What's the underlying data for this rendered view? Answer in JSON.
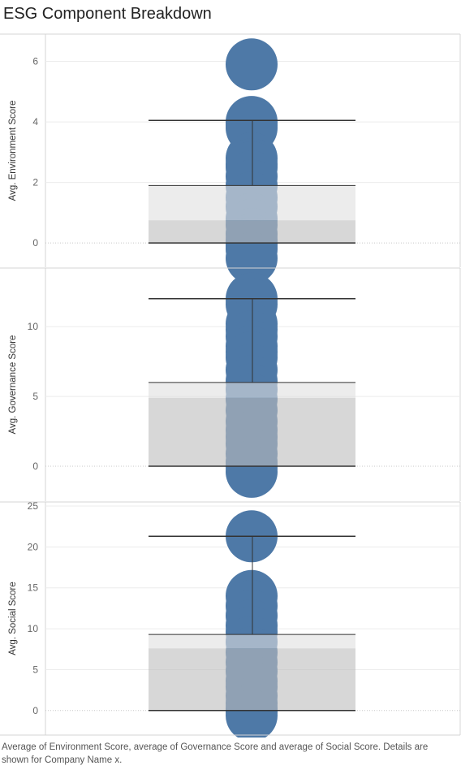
{
  "title": "ESG Component Breakdown",
  "caption": "Average of Environment Score, average of Governance Score and average of Social Score.  Details are shown for Company Name x.",
  "colors": {
    "dot": "#4e79a7",
    "box_upper": "#e0e0e0",
    "box_lower": "#bdbdbd",
    "whisker": "#333333",
    "grid": "#ececec",
    "zero_line": "#c8c8c8",
    "panel_border": "#d4d4d4",
    "axis_text": "#666666"
  },
  "chart_data": [
    {
      "type": "box-and-dot",
      "ylabel": "Avg. Environment Score",
      "ticks": [
        0,
        2,
        4,
        6
      ],
      "ylim": [
        -0.8,
        6.9
      ],
      "grid": true,
      "points": [
        5.9,
        4.0,
        3.9,
        3.8,
        2.8,
        2.6,
        2.5,
        2.2,
        1.9,
        1.5,
        1.2,
        0.8,
        0.6,
        0.3,
        0.1,
        0.0,
        -0.1,
        -0.2,
        -0.5
      ],
      "box": {
        "q1": 0.0,
        "median": 0.75,
        "q3": 1.9
      },
      "whisker": {
        "low": 0.0,
        "high": 4.05
      }
    },
    {
      "type": "box-and-dot",
      "ylabel": "Avg. Governance Score",
      "ticks": [
        0,
        5,
        10
      ],
      "ylim": [
        -2.5,
        14.2
      ],
      "grid": true,
      "points": [
        12.0,
        11.6,
        10.2,
        9.8,
        9.3,
        8.6,
        8.2,
        7.8,
        6.9,
        6.1,
        5.5,
        4.8,
        4.0,
        3.2,
        2.6,
        2.1,
        1.6,
        0.9,
        0.3,
        0.0,
        -0.4
      ],
      "box": {
        "q1": 0.0,
        "median": 4.9,
        "q3": 6.0
      },
      "whisker": {
        "low": 0.0,
        "high": 12.0
      }
    },
    {
      "type": "box-and-dot",
      "ylabel": "Avg. Social Score",
      "ticks": [
        0,
        5,
        10,
        15,
        20,
        25
      ],
      "ylim": [
        -3.0,
        25.5
      ],
      "grid": true,
      "points": [
        21.3,
        14.0,
        12.8,
        11.6,
        10.4,
        9.6,
        8.4,
        7.1,
        5.9,
        4.8,
        3.6,
        2.9,
        1.8,
        0.9,
        0.2,
        0.0,
        -0.6
      ],
      "box": {
        "q1": 0.0,
        "median": 7.6,
        "q3": 9.3
      },
      "whisker": {
        "low": 0.0,
        "high": 21.3
      }
    }
  ]
}
